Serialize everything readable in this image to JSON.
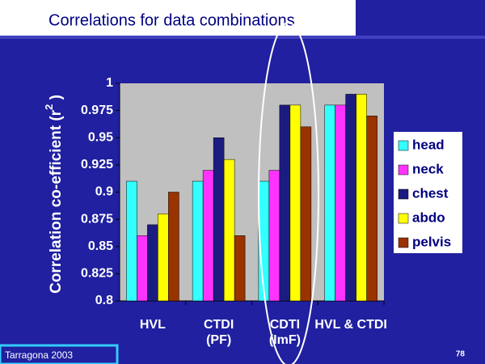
{
  "chart_data": {
    "type": "bar",
    "title": "Correlations for data combinations",
    "y_label": "Correlation co-efficient (r",
    "y_label_superscript": "2",
    "y_label_end": " )",
    "categories": [
      "HVL",
      "CTDI\n(PF)",
      "CDTI\n(ImF)",
      "HVL & CTDI"
    ],
    "series": [
      {
        "name": "head",
        "color": "#33ffff",
        "values": [
          0.91,
          0.91,
          0.91,
          0.98
        ]
      },
      {
        "name": "neck",
        "color": "#ff33ff",
        "values": [
          0.86,
          0.92,
          0.92,
          0.98
        ]
      },
      {
        "name": "chest",
        "color": "#1c1c80",
        "values": [
          0.87,
          0.95,
          0.98,
          0.99
        ]
      },
      {
        "name": "abdo",
        "color": "#ffff00",
        "values": [
          0.88,
          0.93,
          0.98,
          0.99
        ]
      },
      {
        "name": "pelvis",
        "color": "#993300",
        "values": [
          0.9,
          0.86,
          0.96,
          0.97
        ]
      }
    ],
    "ylim": [
      0.8,
      1
    ],
    "yticks": [
      0.8,
      0.825,
      0.85,
      0.875,
      0.9,
      0.925,
      0.95,
      0.975,
      1
    ],
    "grid": false,
    "legend": "right"
  },
  "footer": {
    "left": "Tarragona 2003",
    "page": "78"
  }
}
